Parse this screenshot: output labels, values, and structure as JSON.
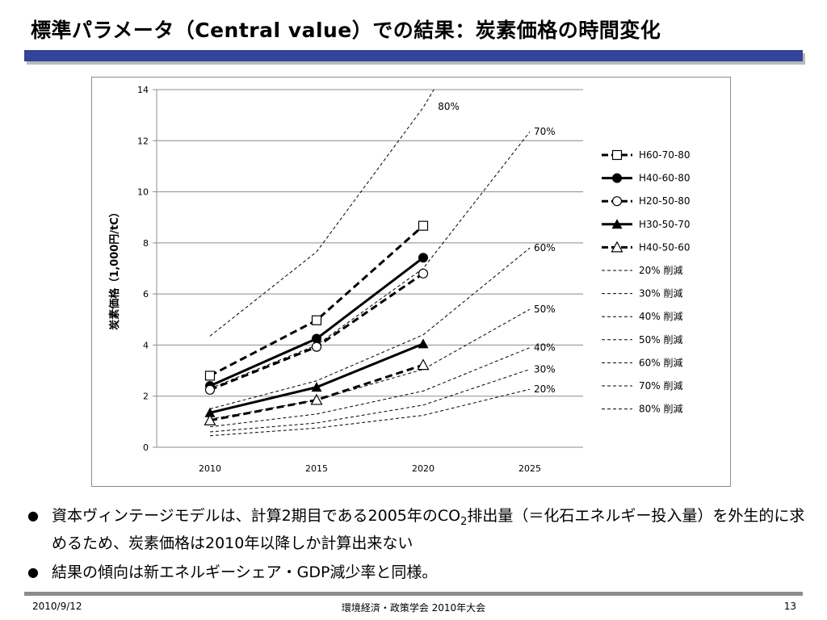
{
  "slide": {
    "title": "標準パラメータ（Central value）での結果：炭素価格の時間変化",
    "bullets": [
      {
        "text_before": "資本ヴィンテージモデルは、計算2期目である2005年のCO",
        "sub": "2",
        "text_after": "排出量（＝化石エネルギー投入量）を外生的に求めるため、炭素価格は2010年以降しか計算出来ない"
      },
      {
        "text_before": "結果の傾向は新エネルギーシェア・GDP減少率と同様。",
        "sub": "",
        "text_after": ""
      }
    ],
    "footer": {
      "date": "2010/9/12",
      "event": "環境経済・政策学会 2010年大会",
      "page": "13"
    }
  },
  "chart_data": {
    "type": "line",
    "title": "",
    "xlabel": "",
    "ylabel": "炭素価格（1,000円/tC）",
    "xlim": [
      2007.5,
      2027.5
    ],
    "ylim": [
      0,
      14
    ],
    "x_ticks": [
      "2010",
      "2015",
      "2020",
      "2025"
    ],
    "y_ticks": [
      "0",
      "2",
      "4",
      "6",
      "8",
      "10",
      "12",
      "14"
    ],
    "grid": "horizontal",
    "legend_position": "right",
    "series": [
      {
        "name": "H60-70-80",
        "style": "bold-dashed",
        "marker": "square-open",
        "x": [
          2010,
          2015,
          2020
        ],
        "y": [
          2.8,
          4.97,
          8.67
        ]
      },
      {
        "name": "H40-60-80",
        "style": "bold-solid",
        "marker": "circle-filled",
        "x": [
          2010,
          2015,
          2020
        ],
        "y": [
          2.4,
          4.25,
          7.42
        ]
      },
      {
        "name": "H20-50-80",
        "style": "bold-dashed",
        "marker": "circle-open",
        "x": [
          2010,
          2015,
          2020
        ],
        "y": [
          2.25,
          3.93,
          6.8
        ]
      },
      {
        "name": "H30-50-70",
        "style": "bold-solid",
        "marker": "triangle-filled",
        "x": [
          2010,
          2015,
          2020
        ],
        "y": [
          1.35,
          2.35,
          4.05
        ]
      },
      {
        "name": "H40-50-60",
        "style": "bold-dashed",
        "marker": "triangle-open",
        "x": [
          2010,
          2015,
          2020
        ],
        "y": [
          1.05,
          1.85,
          3.22
        ]
      },
      {
        "name": "20% 削減",
        "style": "thin-dashed",
        "marker": "none",
        "x": [
          2010,
          2015,
          2020,
          2025
        ],
        "y": [
          0.45,
          0.75,
          1.25,
          2.27
        ],
        "label": "20%"
      },
      {
        "name": "30% 削減",
        "style": "thin-dashed",
        "marker": "none",
        "x": [
          2010,
          2015,
          2020,
          2025
        ],
        "y": [
          0.6,
          0.95,
          1.65,
          3.05
        ],
        "label": "30%"
      },
      {
        "name": "40% 削減",
        "style": "thin-dashed",
        "marker": "none",
        "x": [
          2010,
          2015,
          2020,
          2025
        ],
        "y": [
          0.8,
          1.3,
          2.2,
          3.9
        ],
        "label": "40%"
      },
      {
        "name": "50% 削減",
        "style": "thin-dashed",
        "marker": "none",
        "x": [
          2010,
          2015,
          2020,
          2025
        ],
        "y": [
          1.1,
          1.85,
          3.05,
          5.4
        ],
        "label": "50%"
      },
      {
        "name": "60% 削減",
        "style": "thin-dashed",
        "marker": "none",
        "x": [
          2010,
          2015,
          2020,
          2025
        ],
        "y": [
          1.5,
          2.6,
          4.4,
          7.8
        ],
        "label": "60%"
      },
      {
        "name": "70% 削減",
        "style": "thin-dashed",
        "marker": "none",
        "x": [
          2010,
          2015,
          2020,
          2025
        ],
        "y": [
          2.3,
          4.0,
          7.0,
          12.35
        ],
        "label": "70%"
      },
      {
        "name": "80% 削減",
        "style": "thin-dashed",
        "marker": "none",
        "x": [
          2010,
          2015,
          2020,
          2020.5
        ],
        "y": [
          4.35,
          7.65,
          13.3,
          14.0
        ],
        "label": "80%"
      }
    ]
  }
}
